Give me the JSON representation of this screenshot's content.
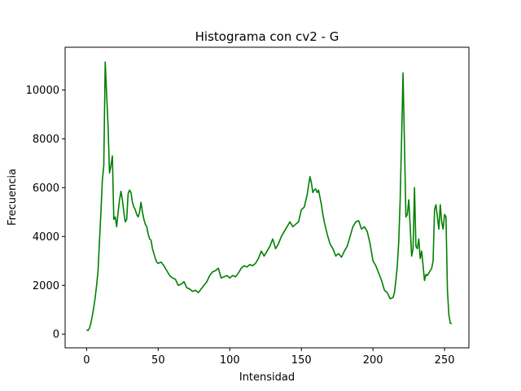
{
  "chart_data": {
    "type": "line",
    "title": "Histograma con cv2 - G",
    "xlabel": "Intensidad",
    "ylabel": "Frecuencia",
    "xlim": [
      -15,
      267
    ],
    "ylim": [
      -560,
      11750
    ],
    "xticks": [
      0,
      50,
      100,
      150,
      200,
      250
    ],
    "yticks": [
      0,
      2000,
      4000,
      6000,
      8000,
      10000
    ],
    "grid": false,
    "series": [
      {
        "color": "#008000",
        "x": [
          0,
          1,
          2,
          3,
          4,
          5,
          6,
          7,
          8,
          9,
          10,
          11,
          12,
          13,
          14,
          15,
          16,
          17,
          18,
          19,
          20,
          21,
          22,
          23,
          24,
          25,
          26,
          27,
          28,
          29,
          30,
          31,
          32,
          33,
          34,
          35,
          36,
          37,
          38,
          39,
          40,
          41,
          42,
          43,
          44,
          45,
          46,
          47,
          48,
          49,
          50,
          52,
          54,
          56,
          58,
          60,
          62,
          64,
          66,
          68,
          70,
          72,
          74,
          76,
          78,
          80,
          82,
          84,
          86,
          88,
          90,
          92,
          94,
          96,
          98,
          100,
          102,
          104,
          106,
          108,
          110,
          112,
          114,
          116,
          118,
          120,
          122,
          124,
          126,
          128,
          130,
          132,
          134,
          136,
          138,
          140,
          142,
          144,
          146,
          148,
          150,
          152,
          154,
          156,
          157,
          158,
          159,
          160,
          161,
          162,
          163,
          164,
          165,
          166,
          168,
          170,
          172,
          174,
          176,
          178,
          180,
          182,
          184,
          186,
          188,
          190,
          192,
          194,
          196,
          198,
          200,
          202,
          204,
          206,
          208,
          210,
          212,
          214,
          215,
          216,
          217,
          218,
          219,
          220,
          221,
          222,
          223,
          224,
          225,
          226,
          227,
          228,
          229,
          230,
          231,
          232,
          233,
          234,
          235,
          236,
          237,
          238,
          239,
          240,
          241,
          242,
          243,
          244,
          245,
          246,
          247,
          248,
          249,
          250,
          251,
          252,
          253,
          254,
          255
        ],
        "y": [
          180,
          150,
          250,
          450,
          750,
          1100,
          1500,
          2000,
          2600,
          3800,
          5000,
          6300,
          6900,
          11150,
          9800,
          8500,
          6600,
          6900,
          7300,
          4700,
          4800,
          4400,
          5000,
          5500,
          5850,
          5500,
          5000,
          4600,
          4700,
          5750,
          5900,
          5800,
          5400,
          5200,
          5100,
          4900,
          4800,
          5000,
          5400,
          5000,
          4700,
          4500,
          4400,
          4100,
          3900,
          3850,
          3500,
          3300,
          3100,
          2950,
          2900,
          2950,
          2800,
          2600,
          2400,
          2300,
          2250,
          2000,
          2050,
          2150,
          1900,
          1850,
          1750,
          1800,
          1700,
          1850,
          2000,
          2150,
          2400,
          2550,
          2600,
          2700,
          2300,
          2350,
          2400,
          2300,
          2400,
          2350,
          2500,
          2700,
          2800,
          2750,
          2850,
          2800,
          2900,
          3100,
          3400,
          3200,
          3400,
          3600,
          3900,
          3500,
          3700,
          4000,
          4200,
          4400,
          4600,
          4400,
          4500,
          4600,
          5100,
          5200,
          5700,
          6450,
          6200,
          5800,
          5900,
          5950,
          5800,
          5900,
          5600,
          5300,
          4900,
          4600,
          4100,
          3700,
          3500,
          3200,
          3300,
          3150,
          3400,
          3600,
          4000,
          4400,
          4600,
          4650,
          4300,
          4400,
          4200,
          3700,
          3000,
          2800,
          2500,
          2200,
          1800,
          1700,
          1450,
          1500,
          1700,
          2200,
          2800,
          3800,
          5500,
          8000,
          10700,
          7800,
          4800,
          4900,
          5500,
          4400,
          3200,
          3500,
          6000,
          3600,
          3500,
          3900,
          3100,
          3400,
          2800,
          2200,
          2450,
          2400,
          2500,
          2600,
          2700,
          3000,
          5100,
          5300,
          4800,
          4300,
          5300,
          4600,
          4300,
          4900,
          4800,
          1800,
          800,
          450,
          420
        ]
      }
    ]
  }
}
